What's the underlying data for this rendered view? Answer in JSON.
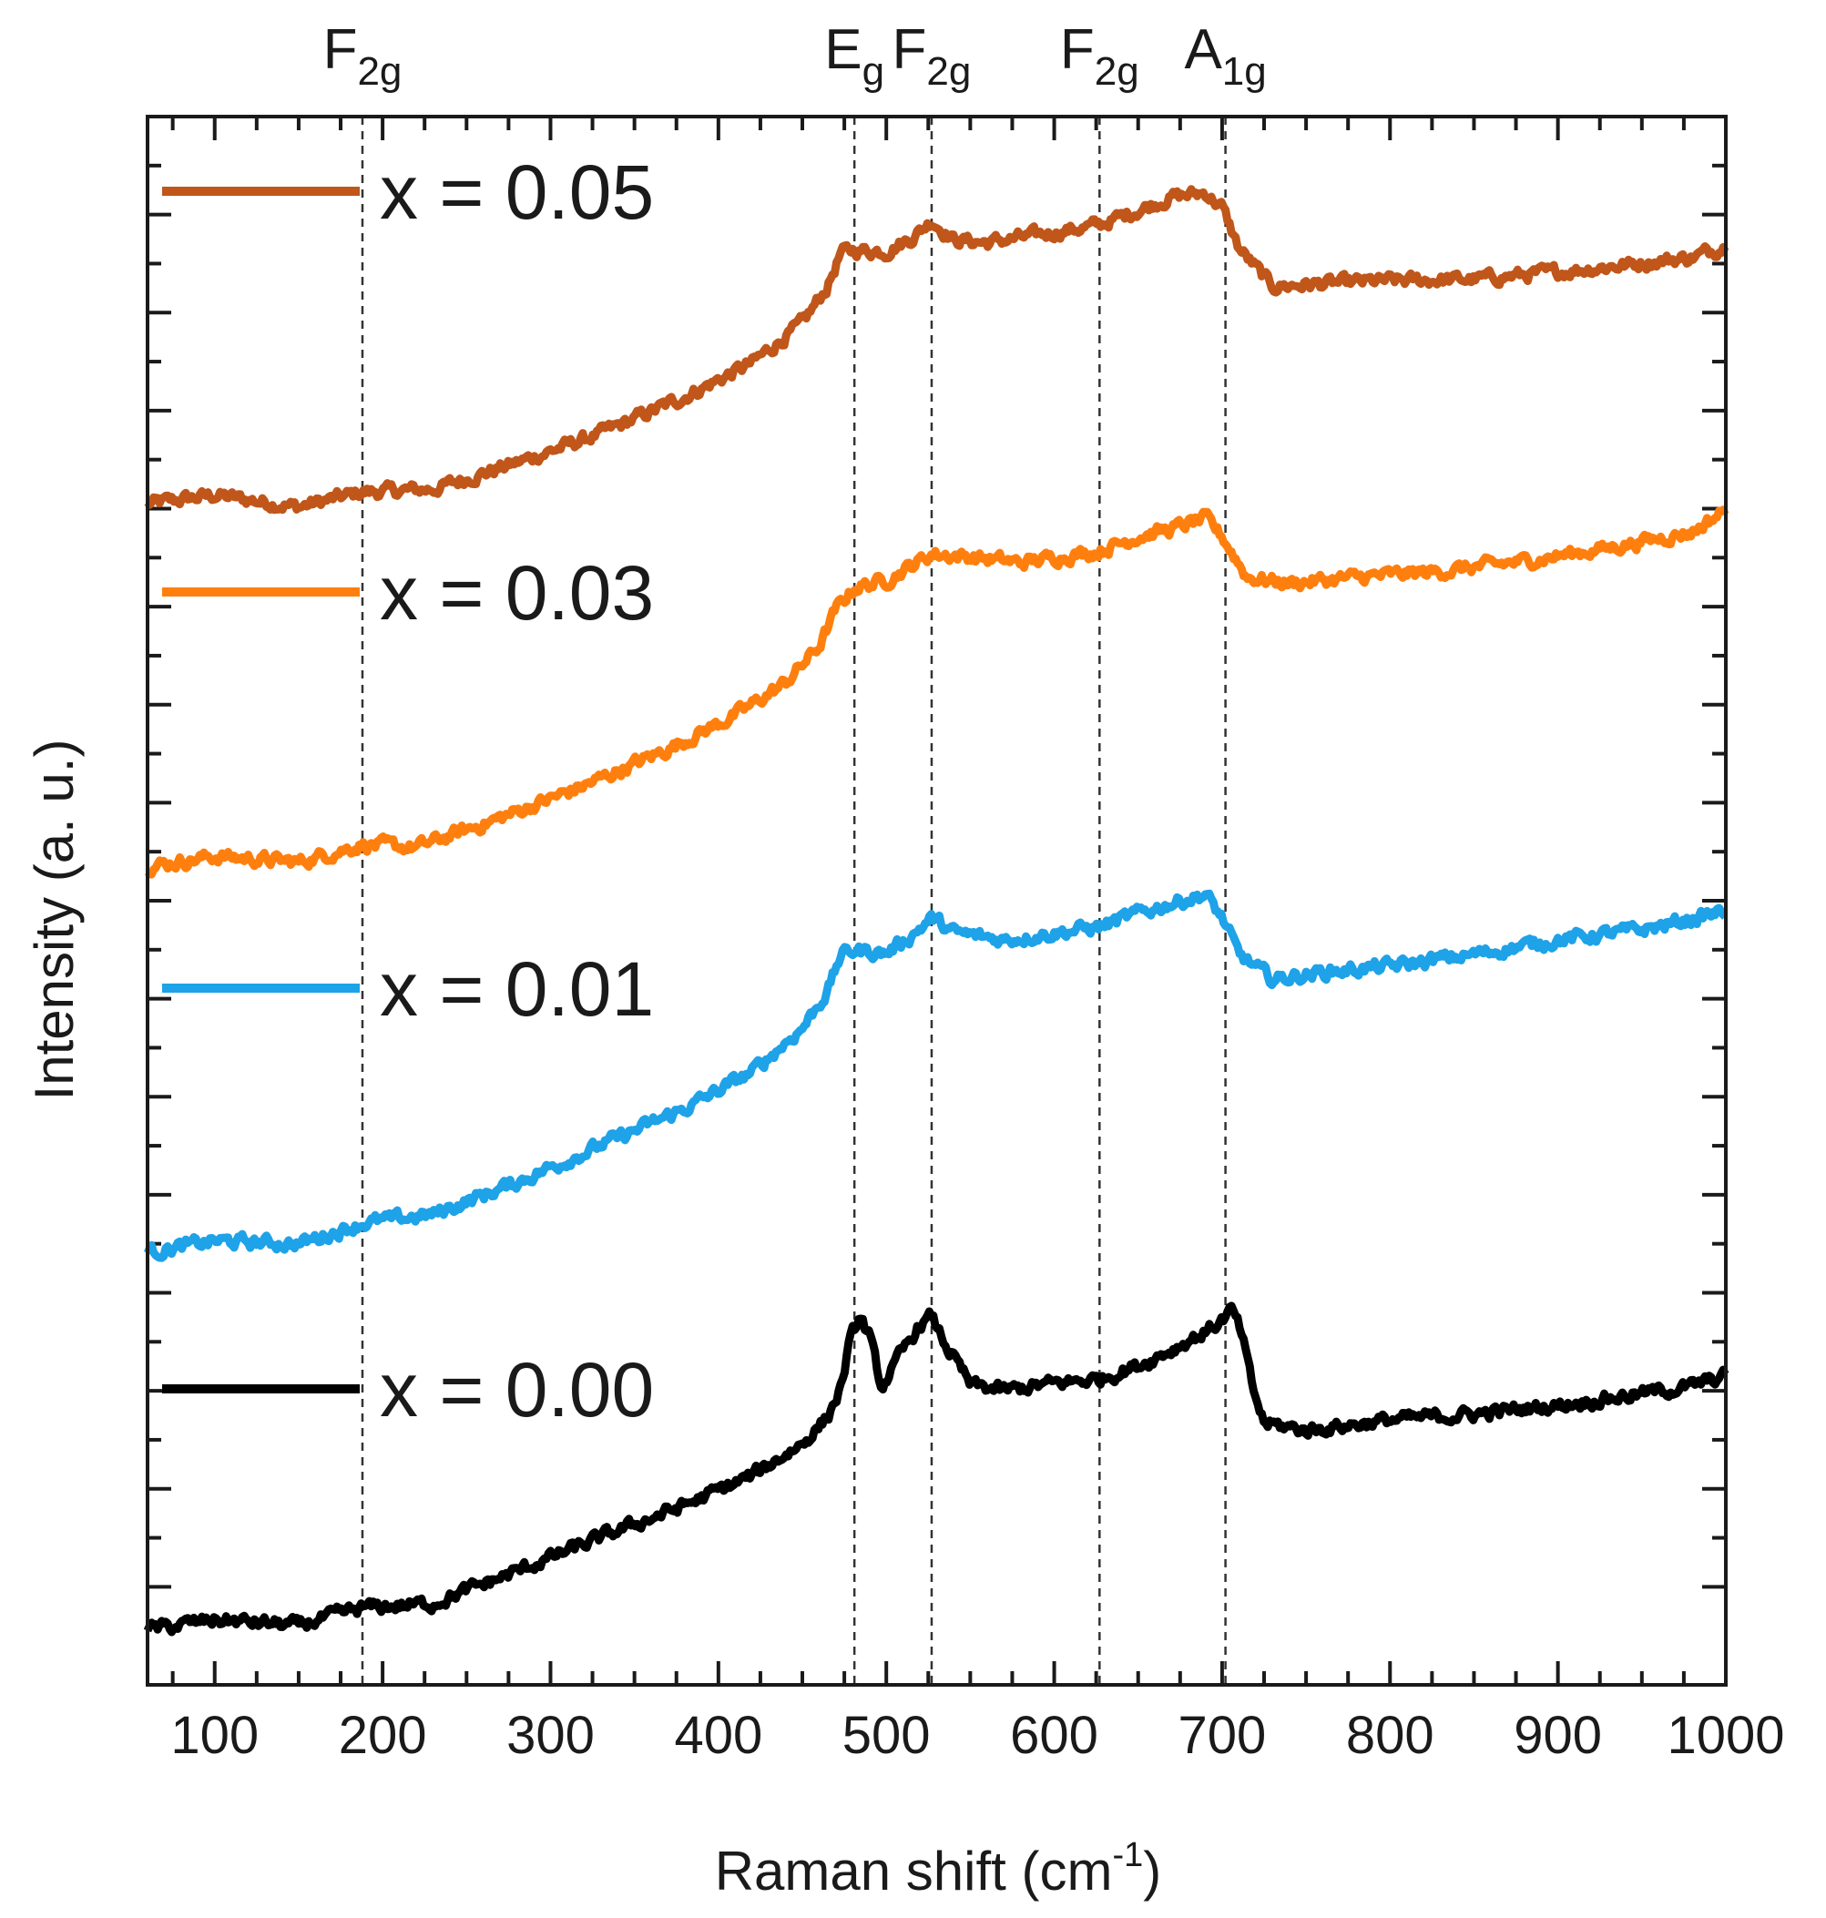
{
  "chart_data": {
    "type": "line",
    "title": "",
    "xlabel": "Raman shift (cm",
    "xlabel_sup": "-1",
    "xlabel_end": ")",
    "ylabel": "Intensity (a. u.)",
    "xlim": [
      60,
      1000
    ],
    "ylim": [
      0,
      100
    ],
    "x_ticks": [
      100,
      200,
      300,
      400,
      500,
      600,
      700,
      800,
      900,
      1000
    ],
    "x_minor_step": 25,
    "y_tick_count": 16,
    "legend_position": "left",
    "peak_markers": [
      {
        "main": "F",
        "sub": "2g",
        "x": 188
      },
      {
        "main": "E",
        "sub": "g",
        "x": 481
      },
      {
        "main": "F",
        "sub": "2g",
        "x": 527
      },
      {
        "main": "F",
        "sub": "2g",
        "x": 627
      },
      {
        "main": "A",
        "sub": "1g",
        "x": 702
      }
    ],
    "series": [
      {
        "name": "x = 0.05",
        "color": "#c0561a",
        "x": [
          60,
          100,
          150,
          188,
          230,
          280,
          330,
          380,
          420,
          450,
          465,
          473,
          481,
          500,
          515,
          527,
          540,
          560,
          590,
          627,
          650,
          670,
          690,
          700,
          710,
          730,
          760,
          800,
          850,
          900,
          950,
          980,
          1000
        ],
        "y": [
          79.2,
          79.8,
          79.0,
          80.0,
          80.2,
          82.0,
          84.0,
          86.5,
          88.8,
          91.5,
          94.0,
          96.3,
          96.5,
          96.4,
          97.3,
          98.5,
          97.2,
          97.0,
          97.5,
          98.2,
          99.2,
          100.1,
          100.4,
          99.4,
          96.6,
          94.0,
          94.2,
          94.4,
          94.5,
          95.0,
          95.6,
          96.0,
          96.8
        ]
      },
      {
        "name": "x = 0.03",
        "color": "#ff7f0e",
        "x": [
          60,
          100,
          150,
          188,
          220,
          270,
          320,
          370,
          410,
          440,
          460,
          470,
          481,
          500,
          515,
          527,
          550,
          580,
          627,
          650,
          670,
          690,
          700,
          715,
          740,
          780,
          830,
          880,
          930,
          980,
          1000
        ],
        "y": [
          54.5,
          55.2,
          54.8,
          56.0,
          55.8,
          57.8,
          60.0,
          62.5,
          64.8,
          67.0,
          69.5,
          72.0,
          73.5,
          74.0,
          75.0,
          75.8,
          75.6,
          75.2,
          76.0,
          77.0,
          77.5,
          78.2,
          77.0,
          74.2,
          73.8,
          74.2,
          74.6,
          75.3,
          76.2,
          77.3,
          78.8
        ]
      },
      {
        "name": "x = 0.01",
        "color": "#1ea2e8",
        "x": [
          60,
          100,
          150,
          188,
          230,
          280,
          330,
          380,
          420,
          450,
          465,
          473,
          481,
          500,
          515,
          527,
          540,
          570,
          627,
          650,
          670,
          690,
          700,
          710,
          730,
          760,
          800,
          850,
          900,
          950,
          980,
          1000
        ],
        "y": [
          28.2,
          29.0,
          28.8,
          30.2,
          30.8,
          33.0,
          35.5,
          38.0,
          40.5,
          43.5,
          46.0,
          48.5,
          48.8,
          48.6,
          49.8,
          51.0,
          50.0,
          49.5,
          50.4,
          51.3,
          52.0,
          52.6,
          51.0,
          48.5,
          46.8,
          47.3,
          47.7,
          48.5,
          49.5,
          50.2,
          50.9,
          51.5
        ]
      },
      {
        "name": "x = 0.00",
        "color": "#000000",
        "x": [
          60,
          100,
          150,
          188,
          230,
          280,
          330,
          380,
          420,
          450,
          465,
          473,
          478,
          484,
          490,
          497,
          510,
          520,
          527,
          535,
          550,
          570,
          600,
          627,
          650,
          670,
          690,
          700,
          706,
          712,
          718,
          725,
          750,
          800,
          850,
          900,
          950,
          980,
          1000
        ],
        "y": [
          2.5,
          3.2,
          2.8,
          4.0,
          4.3,
          6.5,
          8.8,
          11.0,
          13.0,
          15.2,
          17.0,
          19.0,
          22.0,
          23.8,
          22.5,
          19.0,
          21.5,
          23.3,
          23.8,
          22.0,
          19.2,
          18.8,
          19.3,
          19.6,
          20.5,
          21.6,
          22.8,
          23.6,
          24.3,
          22.5,
          19.0,
          16.6,
          16.1,
          16.8,
          17.2,
          17.8,
          18.6,
          19.1,
          19.8
        ]
      }
    ]
  }
}
